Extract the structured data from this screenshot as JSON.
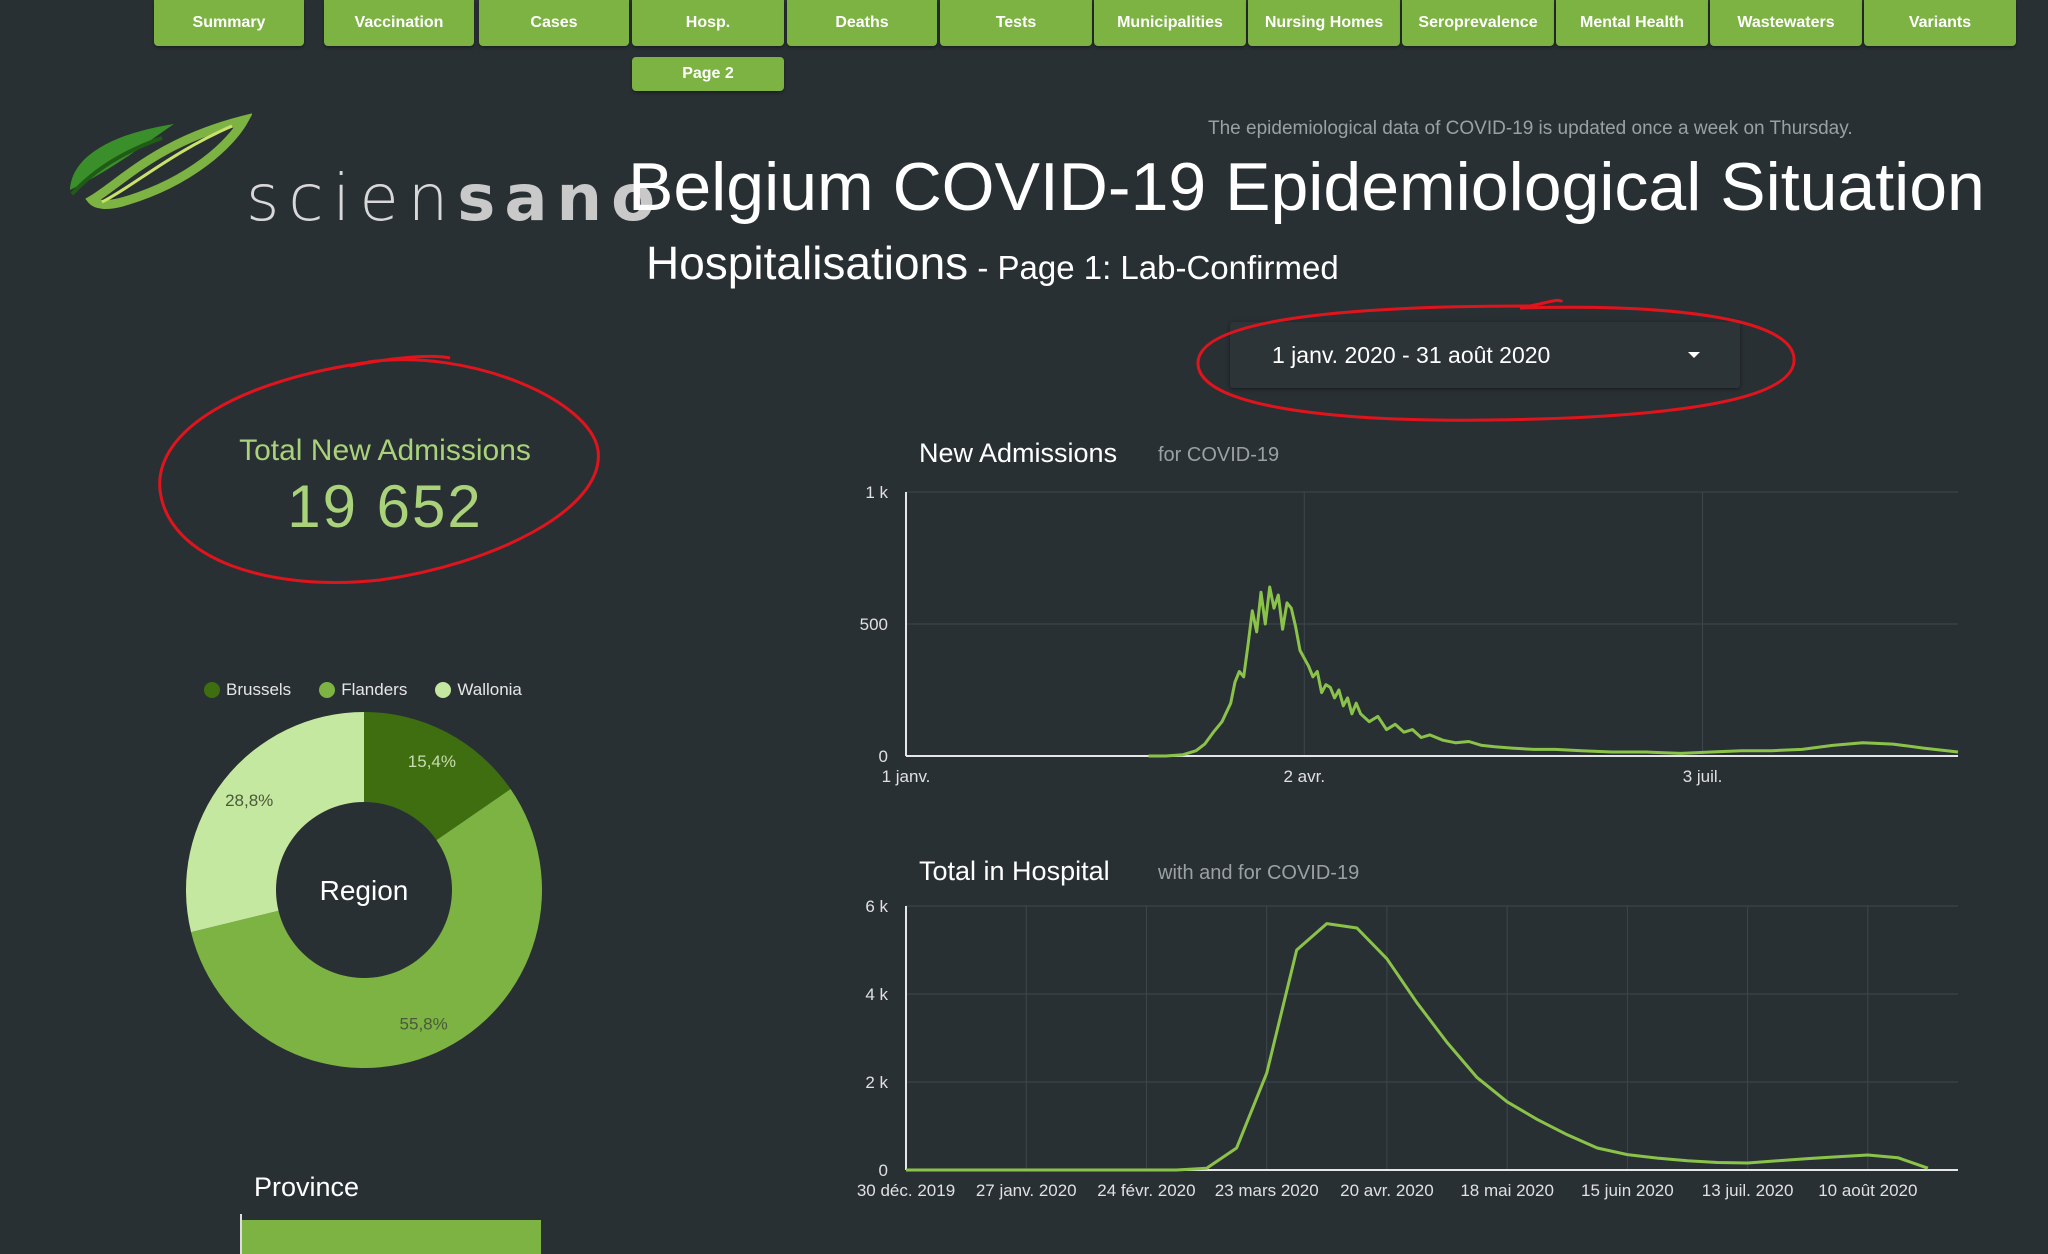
{
  "nav": {
    "tabs": [
      {
        "label": "Summary"
      },
      {
        "label": "Vaccination"
      },
      {
        "label": "Cases"
      },
      {
        "label": "Hosp."
      },
      {
        "label": "Deaths"
      },
      {
        "label": "Tests"
      },
      {
        "label": "Municipalities"
      },
      {
        "label": "Nursing Homes"
      },
      {
        "label": "Seroprevalence"
      },
      {
        "label": "Mental Health"
      },
      {
        "label": "Wastewaters"
      },
      {
        "label": "Variants"
      }
    ],
    "subtab": "Page 2"
  },
  "logo": {
    "text_light": "scien",
    "text_bold": "sano",
    "icon": "leaf-logo-icon"
  },
  "header": {
    "notice": "The epidemiological data of COVID-19 is updated once a week on Thursday.",
    "title": "Belgium COVID-19 Epidemiological Situation",
    "subtitle_main": "Hospitalisations",
    "subtitle_detail": " - Page 1: Lab-Confirmed"
  },
  "date_range": {
    "value": "1 janv. 2020 - 31 août 2020",
    "icon": "caret-down-icon"
  },
  "scorecard": {
    "label": "Total New Admissions",
    "value": "19 652"
  },
  "colors": {
    "accent": "#7cb342",
    "line": "#8bc34a",
    "annotation": "#e0141c",
    "brussels": "#3f6e10",
    "flanders": "#7cb342",
    "wallonia": "#c5e8a0"
  },
  "region_chart": {
    "center_label": "Region",
    "legend": [
      {
        "name": "Brussels"
      },
      {
        "name": "Flanders"
      },
      {
        "name": "Wallonia"
      }
    ]
  },
  "province": {
    "title": "Province",
    "bar_fraction": 0.845
  },
  "new_admissions": {
    "title": "New Admissions",
    "subtitle": "for COVID-19"
  },
  "total_hospital": {
    "title": "Total in Hospital",
    "subtitle": "with and for COVID-19"
  },
  "chart_data": [
    {
      "type": "pie",
      "title": "",
      "categories": [
        "Brussels",
        "Flanders",
        "Wallonia"
      ],
      "values": [
        15.4,
        55.8,
        28.8
      ],
      "labels": [
        "15,4%",
        "55,8%",
        "28,8%"
      ],
      "center_label": "Region"
    },
    {
      "type": "line",
      "title": "New Admissions",
      "x": [
        "2020-03-01",
        "2020-03-05",
        "2020-03-08",
        "2020-03-10",
        "2020-03-12",
        "2020-03-14",
        "2020-03-16",
        "2020-03-17",
        "2020-03-18",
        "2020-03-19",
        "2020-03-20",
        "2020-03-21",
        "2020-03-22",
        "2020-03-23",
        "2020-03-24",
        "2020-03-25",
        "2020-03-26",
        "2020-03-27",
        "2020-03-28",
        "2020-03-29",
        "2020-03-30",
        "2020-03-31",
        "2020-04-01",
        "2020-04-02",
        "2020-04-03",
        "2020-04-04",
        "2020-04-05",
        "2020-04-06",
        "2020-04-07",
        "2020-04-08",
        "2020-04-09",
        "2020-04-10",
        "2020-04-11",
        "2020-04-12",
        "2020-04-13",
        "2020-04-14",
        "2020-04-15",
        "2020-04-17",
        "2020-04-19",
        "2020-04-21",
        "2020-04-23",
        "2020-04-25",
        "2020-04-27",
        "2020-04-29",
        "2020-05-01",
        "2020-05-04",
        "2020-05-07",
        "2020-05-10",
        "2020-05-13",
        "2020-05-16",
        "2020-05-20",
        "2020-05-25",
        "2020-05-30",
        "2020-06-05",
        "2020-06-12",
        "2020-06-20",
        "2020-06-28",
        "2020-07-05",
        "2020-07-12",
        "2020-07-19",
        "2020-07-26",
        "2020-08-02",
        "2020-08-09",
        "2020-08-16",
        "2020-08-23",
        "2020-08-31"
      ],
      "series": [
        {
          "values": [
            0,
            5,
            20,
            45,
            90,
            130,
            200,
            280,
            320,
            300,
            420,
            550,
            470,
            620,
            500,
            640,
            560,
            610,
            480,
            580,
            560,
            490,
            400,
            370,
            340,
            300,
            320,
            240,
            270,
            260,
            220,
            250,
            190,
            220,
            160,
            200,
            160,
            130,
            150,
            100,
            120,
            90,
            100,
            70,
            80,
            60,
            50,
            55,
            40,
            35,
            30,
            25,
            25,
            20,
            15,
            15,
            10,
            15,
            20,
            20,
            25,
            40,
            50,
            45,
            30,
            15
          ]
        }
      ],
      "xlabel": "",
      "ylabel": "",
      "xticks": [
        "1 janv.",
        "2 avr.",
        "3 juil."
      ],
      "yticks": [
        "0",
        "500",
        "1 k"
      ],
      "ylim": [
        0,
        1000
      ],
      "xlim": [
        "2020-01-01",
        "2020-08-31"
      ],
      "grid": true
    },
    {
      "type": "line",
      "title": "Total in Hospital",
      "x": [
        "2019-12-30",
        "2020-03-02",
        "2020-03-09",
        "2020-03-16",
        "2020-03-23",
        "2020-03-30",
        "2020-04-06",
        "2020-04-13",
        "2020-04-20",
        "2020-04-27",
        "2020-05-04",
        "2020-05-11",
        "2020-05-18",
        "2020-05-25",
        "2020-06-01",
        "2020-06-08",
        "2020-06-15",
        "2020-06-22",
        "2020-06-29",
        "2020-07-06",
        "2020-07-13",
        "2020-07-20",
        "2020-07-27",
        "2020-08-03",
        "2020-08-10",
        "2020-08-17",
        "2020-08-24"
      ],
      "series": [
        {
          "values": [
            0,
            0,
            40,
            500,
            2200,
            5000,
            5600,
            5500,
            4800,
            3800,
            2900,
            2100,
            1550,
            1150,
            800,
            500,
            350,
            270,
            210,
            170,
            160,
            210,
            260,
            300,
            340,
            280,
            40
          ]
        }
      ],
      "xlabel": "",
      "ylabel": "",
      "xticks": [
        "30 déc. 2019",
        "27 janv. 2020",
        "24 févr. 2020",
        "23 mars 2020",
        "20 avr. 2020",
        "18 mai 2020",
        "15 juin 2020",
        "13 juil. 2020",
        "10 août 2020"
      ],
      "yticks": [
        "0",
        "2 k",
        "4 k",
        "6 k"
      ],
      "ylim": [
        0,
        6000
      ],
      "xlim": [
        "2019-12-30",
        "2020-08-31"
      ],
      "grid": true
    }
  ]
}
